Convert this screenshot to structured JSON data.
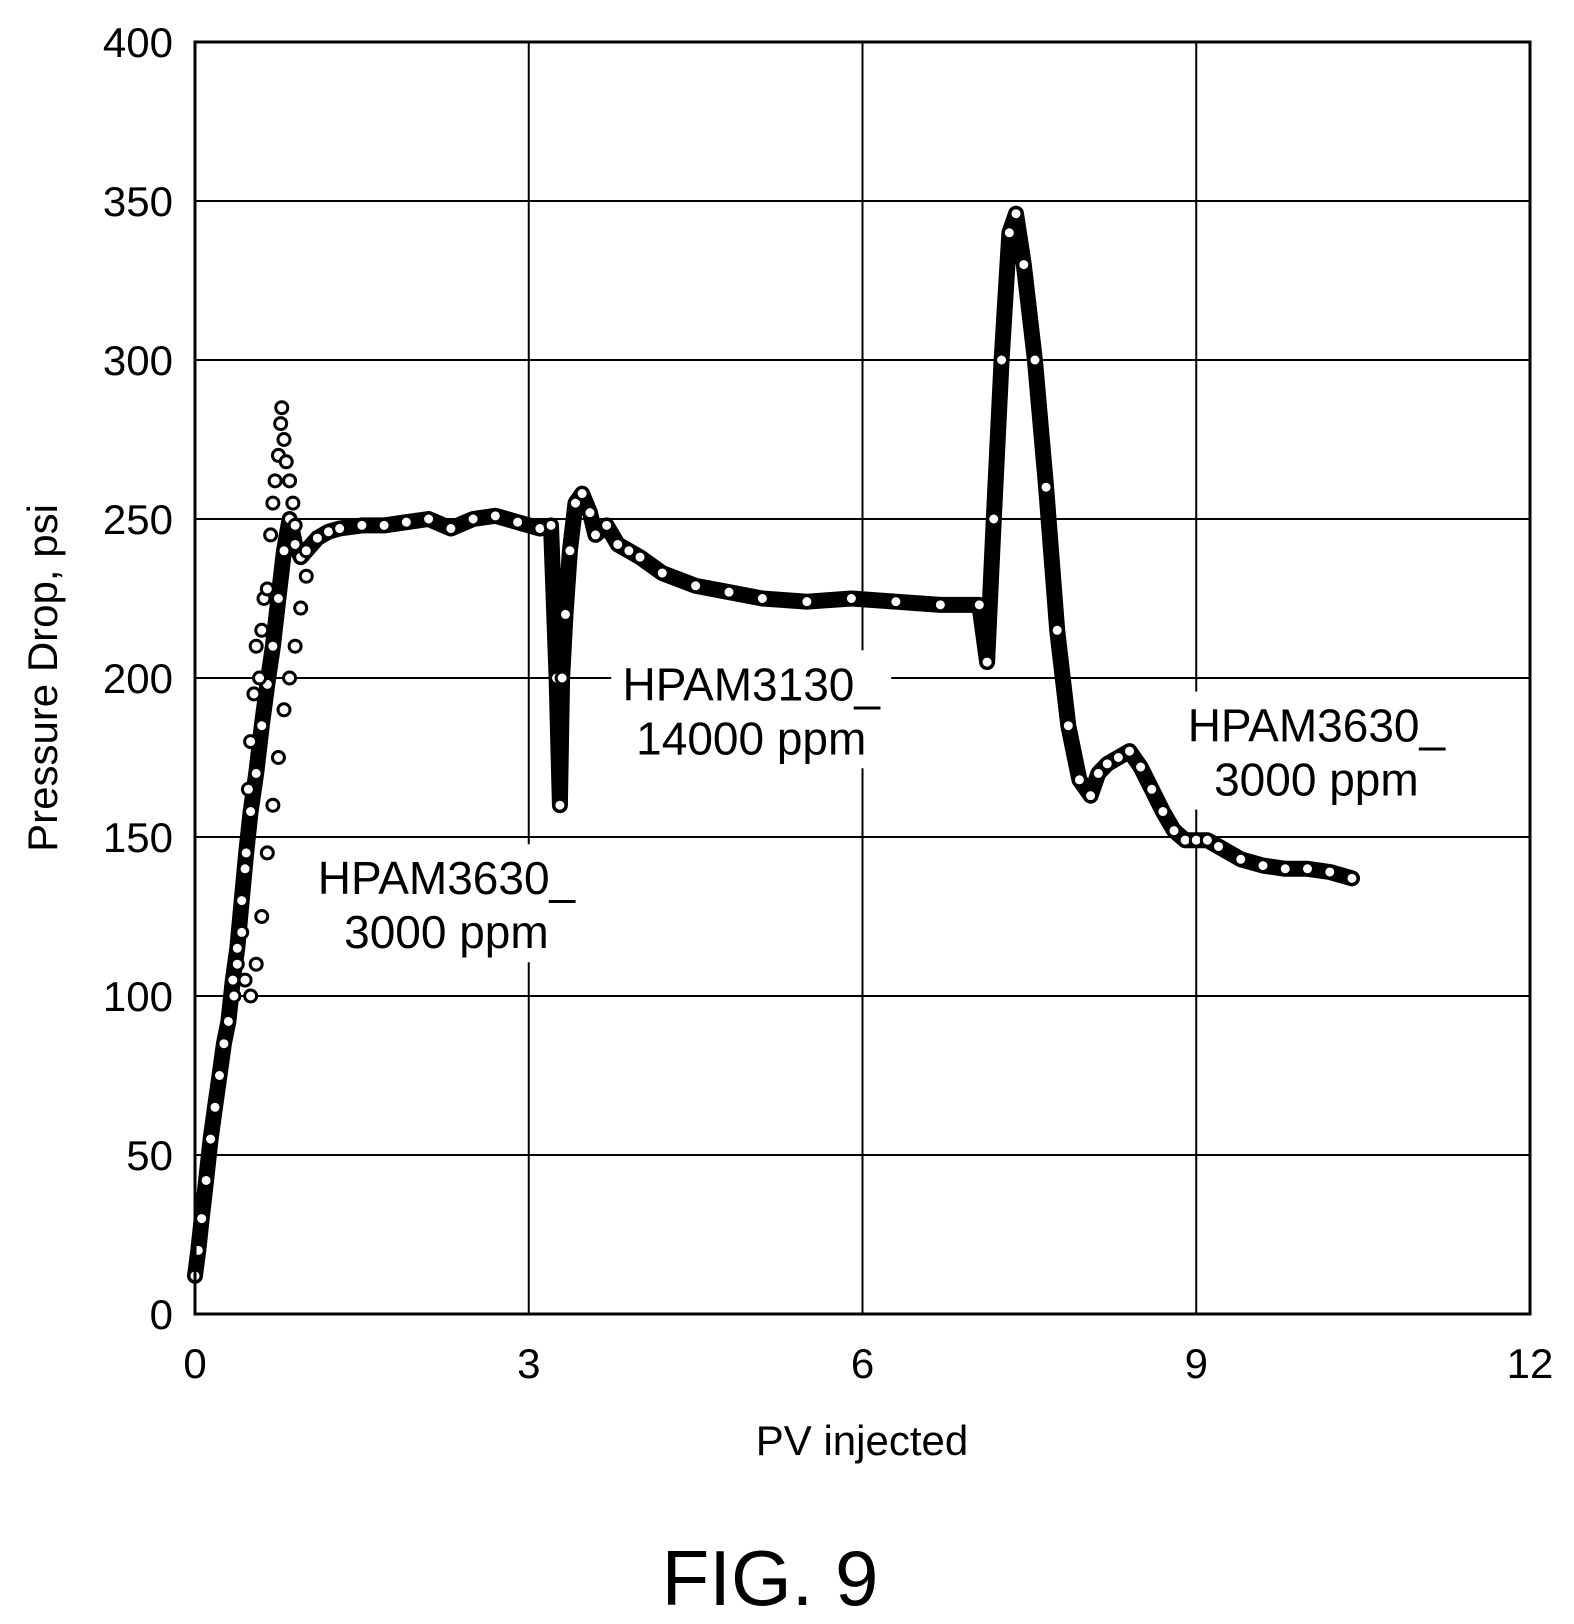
{
  "figure_label": "FIG. 9",
  "chart_data": {
    "type": "scatter",
    "title": "",
    "xlabel": "PV injected",
    "ylabel": "Pressure Drop, psi",
    "xlim": [
      0,
      12
    ],
    "ylim": [
      0,
      400
    ],
    "xticks": [
      0,
      3,
      6,
      9,
      12
    ],
    "yticks": [
      0,
      50,
      100,
      150,
      200,
      250,
      300,
      350,
      400
    ],
    "grid": true,
    "legend": "none",
    "marker": "open-circle",
    "color": "#000000",
    "annotations": [
      {
        "lines": [
          "HPAM3630_",
          "3000 ppm"
        ],
        "x": 2.26,
        "y": 132
      },
      {
        "lines": [
          "HPAM3130_",
          "14000 ppm"
        ],
        "x": 5.0,
        "y": 193
      },
      {
        "lines": [
          "HPAM3630_",
          "3000 ppm"
        ],
        "x": 10.08,
        "y": 180
      }
    ],
    "series": [
      {
        "values": [
          [
            0.0,
            12
          ],
          [
            0.03,
            20
          ],
          [
            0.06,
            30
          ],
          [
            0.1,
            42
          ],
          [
            0.14,
            55
          ],
          [
            0.18,
            65
          ],
          [
            0.22,
            75
          ],
          [
            0.26,
            85
          ],
          [
            0.3,
            92
          ],
          [
            0.34,
            105
          ],
          [
            0.38,
            115
          ],
          [
            0.42,
            130
          ],
          [
            0.46,
            145
          ],
          [
            0.5,
            158
          ],
          [
            0.55,
            170
          ],
          [
            0.6,
            185
          ],
          [
            0.65,
            198
          ],
          [
            0.7,
            210
          ],
          [
            0.75,
            225
          ],
          [
            0.8,
            240
          ],
          [
            0.85,
            250
          ],
          [
            0.9,
            242
          ],
          [
            0.95,
            238
          ],
          [
            1.0,
            240
          ],
          [
            1.1,
            244
          ],
          [
            1.2,
            246
          ],
          [
            1.3,
            247
          ],
          [
            1.5,
            248
          ],
          [
            1.7,
            248
          ],
          [
            1.9,
            249
          ],
          [
            2.1,
            250
          ],
          [
            2.3,
            247
          ],
          [
            2.5,
            250
          ],
          [
            2.7,
            251
          ],
          [
            2.9,
            249
          ],
          [
            3.1,
            247
          ],
          [
            3.2,
            248
          ],
          [
            3.25,
            200
          ],
          [
            3.28,
            160
          ],
          [
            3.3,
            200
          ],
          [
            3.33,
            220
          ],
          [
            3.37,
            240
          ],
          [
            3.42,
            255
          ],
          [
            3.48,
            258
          ],
          [
            3.55,
            252
          ],
          [
            3.6,
            245
          ],
          [
            3.7,
            248
          ],
          [
            3.8,
            242
          ],
          [
            3.9,
            240
          ],
          [
            4.0,
            238
          ],
          [
            4.2,
            233
          ],
          [
            4.5,
            229
          ],
          [
            4.8,
            227
          ],
          [
            5.1,
            225
          ],
          [
            5.5,
            224
          ],
          [
            5.9,
            225
          ],
          [
            6.3,
            224
          ],
          [
            6.7,
            223
          ],
          [
            7.05,
            223
          ],
          [
            7.12,
            205
          ],
          [
            7.18,
            250
          ],
          [
            7.25,
            300
          ],
          [
            7.32,
            340
          ],
          [
            7.38,
            346
          ],
          [
            7.45,
            330
          ],
          [
            7.55,
            300
          ],
          [
            7.65,
            260
          ],
          [
            7.75,
            215
          ],
          [
            7.85,
            185
          ],
          [
            7.95,
            168
          ],
          [
            8.05,
            163
          ],
          [
            8.12,
            170
          ],
          [
            8.2,
            173
          ],
          [
            8.3,
            175
          ],
          [
            8.4,
            177
          ],
          [
            8.5,
            172
          ],
          [
            8.6,
            165
          ],
          [
            8.7,
            158
          ],
          [
            8.8,
            152
          ],
          [
            8.9,
            149
          ],
          [
            9.0,
            149
          ],
          [
            9.1,
            149
          ],
          [
            9.2,
            147
          ],
          [
            9.4,
            143
          ],
          [
            9.6,
            141
          ],
          [
            9.8,
            140
          ],
          [
            10.0,
            140
          ],
          [
            10.2,
            139
          ],
          [
            10.4,
            137
          ]
        ]
      },
      {
        "values": [
          [
            0.35,
            100
          ],
          [
            0.38,
            110
          ],
          [
            0.42,
            120
          ],
          [
            0.45,
            140
          ],
          [
            0.48,
            165
          ],
          [
            0.5,
            180
          ],
          [
            0.53,
            195
          ],
          [
            0.55,
            210
          ],
          [
            0.58,
            200
          ],
          [
            0.6,
            215
          ],
          [
            0.62,
            225
          ],
          [
            0.65,
            228
          ],
          [
            0.68,
            245
          ],
          [
            0.7,
            255
          ],
          [
            0.72,
            262
          ],
          [
            0.75,
            270
          ],
          [
            0.77,
            280
          ],
          [
            0.78,
            285
          ],
          [
            0.8,
            275
          ],
          [
            0.82,
            268
          ],
          [
            0.85,
            262
          ],
          [
            0.88,
            255
          ],
          [
            0.9,
            248
          ],
          [
            0.45,
            105
          ],
          [
            0.5,
            100
          ],
          [
            0.55,
            110
          ],
          [
            0.6,
            125
          ],
          [
            0.65,
            145
          ],
          [
            0.7,
            160
          ],
          [
            0.75,
            175
          ],
          [
            0.8,
            190
          ],
          [
            0.85,
            200
          ],
          [
            0.9,
            210
          ],
          [
            0.95,
            222
          ],
          [
            1.0,
            232
          ]
        ]
      }
    ]
  }
}
